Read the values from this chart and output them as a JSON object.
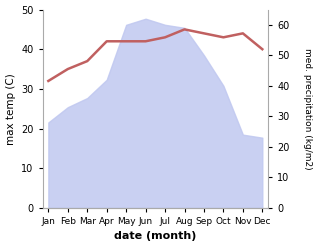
{
  "months": [
    "Jan",
    "Feb",
    "Mar",
    "Apr",
    "May",
    "Jun",
    "Jul",
    "Aug",
    "Sep",
    "Oct",
    "Nov",
    "Dec"
  ],
  "month_x": [
    0,
    1,
    2,
    3,
    4,
    5,
    6,
    7,
    8,
    9,
    10,
    11
  ],
  "temperature": [
    32,
    35,
    37,
    42,
    42,
    42,
    43,
    45,
    44,
    43,
    44,
    40
  ],
  "precipitation_raw": [
    28,
    33,
    36,
    42,
    60,
    62,
    60,
    59,
    50,
    40,
    24,
    23
  ],
  "temp_color": "#c06060",
  "precip_fill_color": "#c0c8f0",
  "temp_ylim": [
    0,
    50
  ],
  "precip_ylim": [
    0,
    65
  ],
  "left_yticks": [
    0,
    10,
    20,
    30,
    40,
    50
  ],
  "right_yticks": [
    0,
    10,
    20,
    30,
    40,
    50,
    60
  ],
  "xlabel": "date (month)",
  "ylabel_left": "max temp (C)",
  "ylabel_right": "med. precipitation (kg/m2)",
  "background_color": "#ffffff"
}
